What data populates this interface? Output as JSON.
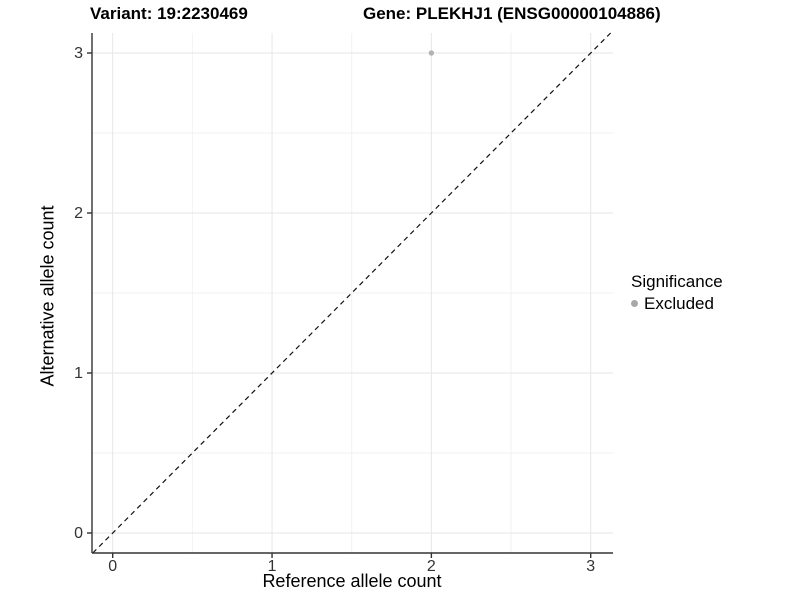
{
  "header": {
    "variant_title": "Variant: 19:2230469",
    "gene_title": "Gene: PLEKHJ1 (ENSG00000104886)"
  },
  "chart_data": {
    "type": "scatter",
    "title": "Variant: 19:2230469 / Gene: PLEKHJ1 (ENSG00000104886)",
    "xlabel": "Reference allele count",
    "ylabel": "Alternative allele count",
    "xlim": [
      -0.13,
      3.14
    ],
    "ylim": [
      -0.125,
      3.125
    ],
    "x_ticks": [
      0,
      1,
      2,
      3
    ],
    "y_ticks": [
      0,
      1,
      2,
      3
    ],
    "x_minor_ticks": [
      0.5,
      1.5,
      2.5
    ],
    "y_minor_ticks": [
      0.5,
      1.5,
      2.5
    ],
    "grid": "major and minor gridlines on",
    "series": [
      {
        "name": "Excluded",
        "color": "#b3b3b3",
        "marker": "circle",
        "points": [
          {
            "x": 2,
            "y": 3
          }
        ]
      }
    ],
    "reference_line": {
      "slope": 1,
      "intercept": 0,
      "style": "dashed",
      "color": "#111111"
    },
    "legend": {
      "title": "Significance",
      "position": "right",
      "items": [
        {
          "label": "Excluded",
          "color": "#a8a8a8"
        }
      ]
    },
    "style": {
      "background": "#ffffff",
      "grid_major_color": "#e6e6e6",
      "grid_minor_color": "#f2f2f2",
      "axis_color": "#333333",
      "tick_label_color": "#333333",
      "text_color": "#000000"
    }
  }
}
